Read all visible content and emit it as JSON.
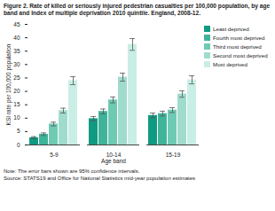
{
  "chart_data": {
    "type": "bar",
    "title": "Figure 2. Rate of killed or seriously injured pedestrian casualties per 100,000 population, by age band and Index of multiple deprivation 2010 quintile. England, 2008-12.",
    "x_label": "Age band",
    "y_label": "KSI rate per 100,000 population",
    "categories": [
      "5-9",
      "10-14",
      "15-19"
    ],
    "series": [
      {
        "name": "Least deprived",
        "color": "#119a83",
        "values": [
          2.7,
          9.8,
          11.0
        ],
        "errors": [
          0.4,
          0.8,
          0.9
        ]
      },
      {
        "name": "Fourth most deprived",
        "color": "#3fb49b",
        "values": [
          4.0,
          12.5,
          11.7
        ],
        "errors": [
          0.5,
          0.9,
          0.9
        ]
      },
      {
        "name": "Third most deprived",
        "color": "#6fcab4",
        "values": [
          7.8,
          16.8,
          13.0
        ],
        "errors": [
          0.7,
          1.1,
          0.9
        ]
      },
      {
        "name": "Second most deprived",
        "color": "#a0dccd",
        "values": [
          12.8,
          25.3,
          19.0
        ],
        "errors": [
          0.9,
          1.5,
          1.2
        ]
      },
      {
        "name": "Most deprived",
        "color": "#c9eee5",
        "values": [
          24.0,
          37.5,
          24.3
        ],
        "errors": [
          1.5,
          2.2,
          1.5
        ]
      }
    ],
    "ylim": [
      0,
      45
    ],
    "yticks": [
      0,
      5,
      10,
      15,
      20,
      25,
      30,
      35,
      40,
      45
    ],
    "grid": false,
    "legend": "right",
    "annotations": [
      "Note: The error bars shown are 95% confidence intervals.",
      "Source: STATS19 and Office for National Statistics mid-year population estimates"
    ]
  }
}
